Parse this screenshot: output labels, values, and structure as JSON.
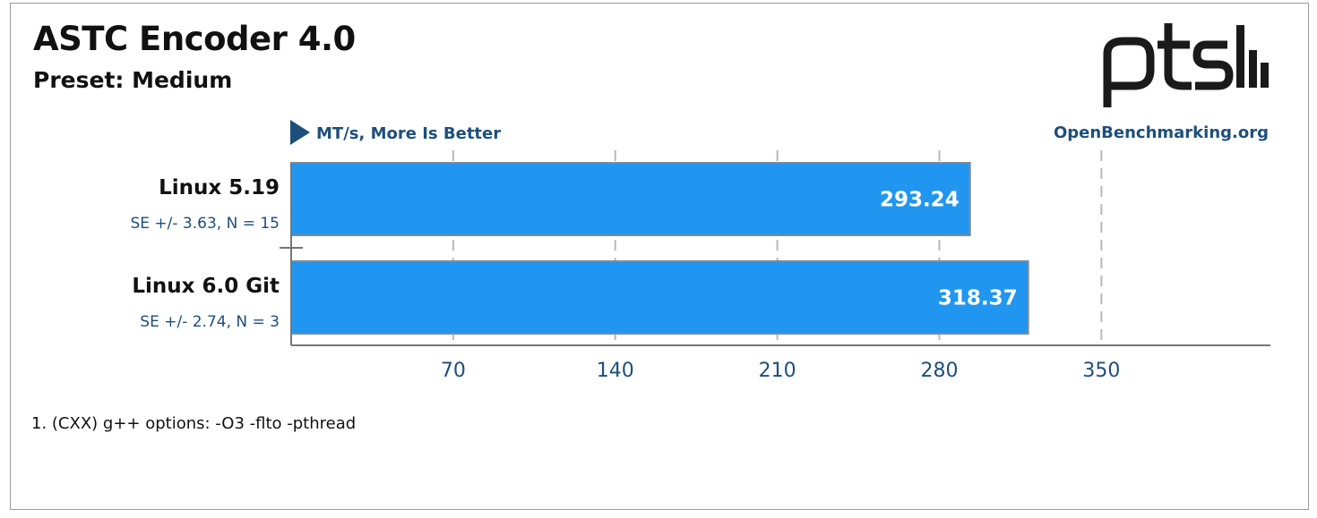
{
  "chart_data": {
    "type": "bar",
    "orientation": "horizontal",
    "title": "ASTC Encoder 4.0",
    "subtitle": "Preset: Medium",
    "unit_label": "MT/s, More Is Better",
    "site": "OpenBenchmarking.org",
    "logo_text": "ptsh",
    "categories": [
      "Linux 5.19",
      "Linux 6.0 Git"
    ],
    "values": [
      293.24,
      318.37
    ],
    "value_labels": [
      "293.24",
      "318.37"
    ],
    "errors": [
      "SE +/- 3.63, N = 15",
      "SE +/- 2.74, N = 3"
    ],
    "xticks": [
      70,
      140,
      210,
      280,
      350
    ],
    "xlim": [
      0,
      423
    ],
    "grid": true,
    "bar_color": "#2196f0",
    "footnote": "1. (CXX) g++ options: -O3 -flto -pthread"
  }
}
